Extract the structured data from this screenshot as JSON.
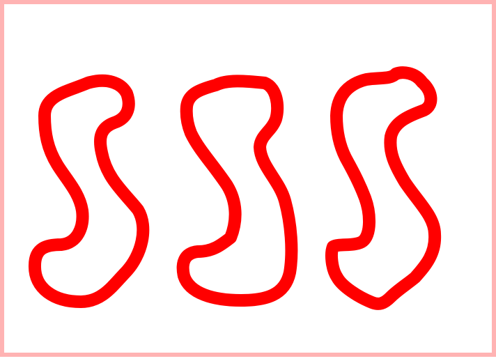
{
  "colors": {
    "frame": "#ffb3b3",
    "background": "#ffffff",
    "stroke": "#ff0000"
  },
  "shapes": {
    "count": 3,
    "kind": "hand-drawn-s-outline"
  }
}
